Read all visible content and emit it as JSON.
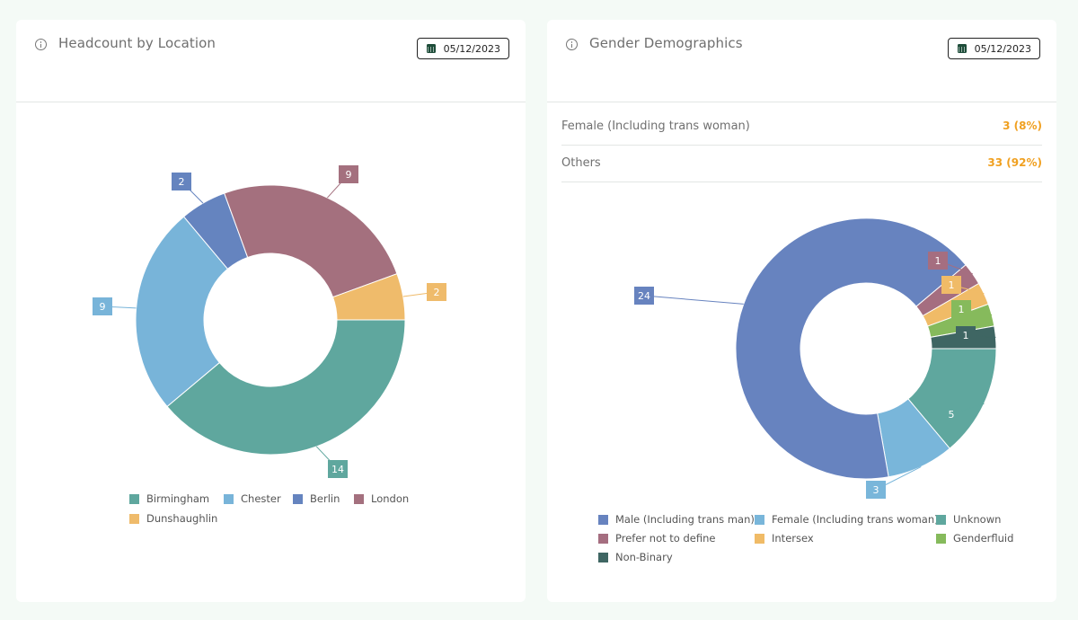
{
  "cards": {
    "location": {
      "title": "Headcount by Location",
      "date": "05/12/2023"
    },
    "gender": {
      "title": "Gender Demographics",
      "date": "05/12/2023",
      "stats": [
        {
          "label": "Female (Including trans woman)",
          "value": "3 (8%)"
        },
        {
          "label": "Others",
          "value": "33 (92%)"
        }
      ]
    }
  },
  "colors": {
    "stat_value": "#f0a020",
    "date_icon": "#1e4d3a"
  },
  "chart_data": [
    {
      "type": "donut",
      "title": "Headcount by Location",
      "series": [
        {
          "name": "Birmingham",
          "value": 14,
          "color": "#5fa79e"
        },
        {
          "name": "Chester",
          "value": 9,
          "color": "#78b4d9"
        },
        {
          "name": "Berlin",
          "value": 2,
          "color": "#6584bf"
        },
        {
          "name": "London",
          "value": 9,
          "color": "#a4707e"
        },
        {
          "name": "Dunshaughlin",
          "value": 2,
          "color": "#efbb6b"
        }
      ],
      "legend": "bottom"
    },
    {
      "type": "donut",
      "title": "Gender Demographics",
      "series": [
        {
          "name": "Male (Including trans man)",
          "value": 24,
          "color": "#6783bf"
        },
        {
          "name": "Female (Including trans woman)",
          "value": 3,
          "color": "#79b6da"
        },
        {
          "name": "Unknown",
          "value": 5,
          "color": "#5fa79e"
        },
        {
          "name": "Prefer not to define",
          "value": 1,
          "color": "#a56e80"
        },
        {
          "name": "Intersex",
          "value": 1,
          "color": "#f0bb67"
        },
        {
          "name": "Genderfluid",
          "value": 1,
          "color": "#86ba5c"
        },
        {
          "name": "Non-Binary",
          "value": 1,
          "color": "#3f6663"
        }
      ],
      "legend": "bottom"
    }
  ]
}
